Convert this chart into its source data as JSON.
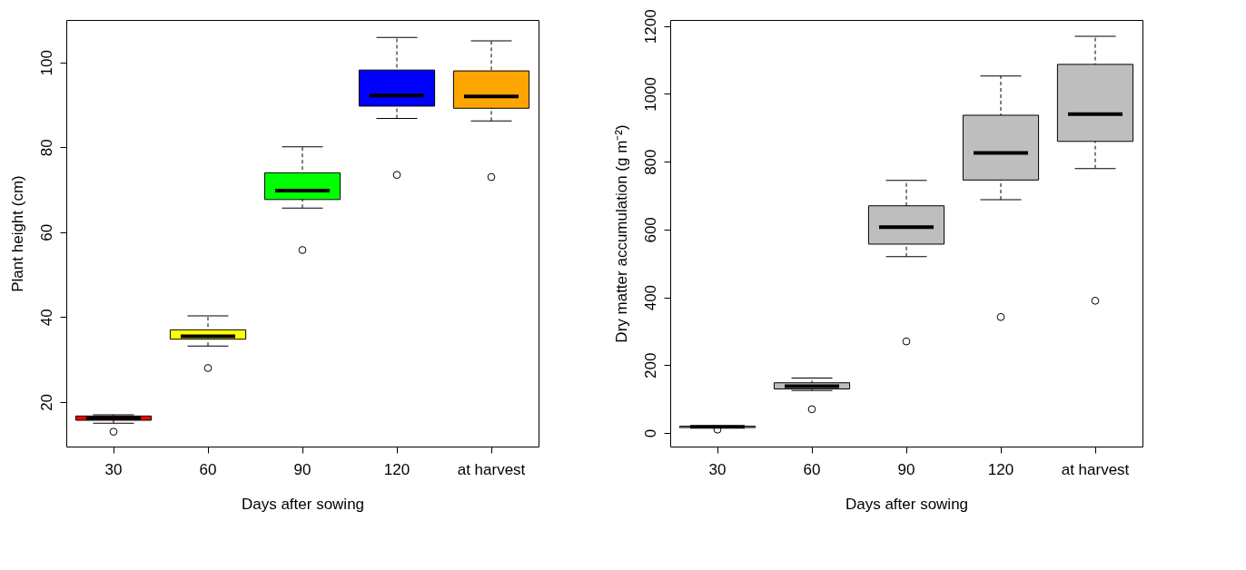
{
  "chart_data": [
    {
      "type": "box",
      "categories": [
        "30",
        "60",
        "90",
        "120",
        "at harvest"
      ],
      "xlabel": "Days after sowing",
      "ylabel": "Plant height (cm)",
      "ylim": [
        9.5,
        110
      ],
      "yticks": [
        20,
        40,
        60,
        80,
        100
      ],
      "grid": false,
      "colors": [
        "#ff0000",
        "#ffff00",
        "#00ff00",
        "#0000ff",
        "#ffa500"
      ],
      "boxes": [
        {
          "low": 15,
          "q1": 15.7,
          "median": 16.2,
          "q3": 16.7,
          "high": 17,
          "outliers": [
            13
          ]
        },
        {
          "low": 33.2,
          "q1": 34.8,
          "median": 35.5,
          "q3": 37,
          "high": 40.3,
          "outliers": [
            28
          ]
        },
        {
          "low": 65.7,
          "q1": 67.7,
          "median": 69.8,
          "q3": 74,
          "high": 80.1,
          "outliers": [
            55.8
          ]
        },
        {
          "low": 86.8,
          "q1": 89.7,
          "median": 92.2,
          "q3": 98.2,
          "high": 105.9,
          "outliers": [
            73.5
          ]
        },
        {
          "low": 86.2,
          "q1": 89.2,
          "median": 92,
          "q3": 98,
          "high": 105.1,
          "outliers": [
            73
          ]
        }
      ]
    },
    {
      "type": "box",
      "categories": [
        "30",
        "60",
        "90",
        "120",
        "at harvest"
      ],
      "xlabel": "Days after sowing",
      "ylabel": "Dry matter accumulation (g m⁻²)",
      "ylim": [
        -40,
        1218
      ],
      "yticks": [
        0,
        200,
        400,
        600,
        800,
        1000,
        1200
      ],
      "grid": false,
      "colors": [
        "#bebebe",
        "#bebebe",
        "#bebebe",
        "#bebebe",
        "#bebebe"
      ],
      "boxes": [
        {
          "low": 15,
          "q1": 16,
          "median": 18,
          "q3": 20,
          "high": 21,
          "outliers": [
            10
          ]
        },
        {
          "low": 125,
          "q1": 130,
          "median": 138,
          "q3": 148,
          "high": 162,
          "outliers": [
            70
          ]
        },
        {
          "low": 520,
          "q1": 557,
          "median": 607,
          "q3": 670,
          "high": 745,
          "outliers": [
            270
          ]
        },
        {
          "low": 688,
          "q1": 746,
          "median": 826,
          "q3": 937,
          "high": 1053,
          "outliers": [
            342
          ]
        },
        {
          "low": 780,
          "q1": 860,
          "median": 940,
          "q3": 1087,
          "high": 1170,
          "outliers": [
            390
          ]
        }
      ]
    }
  ]
}
